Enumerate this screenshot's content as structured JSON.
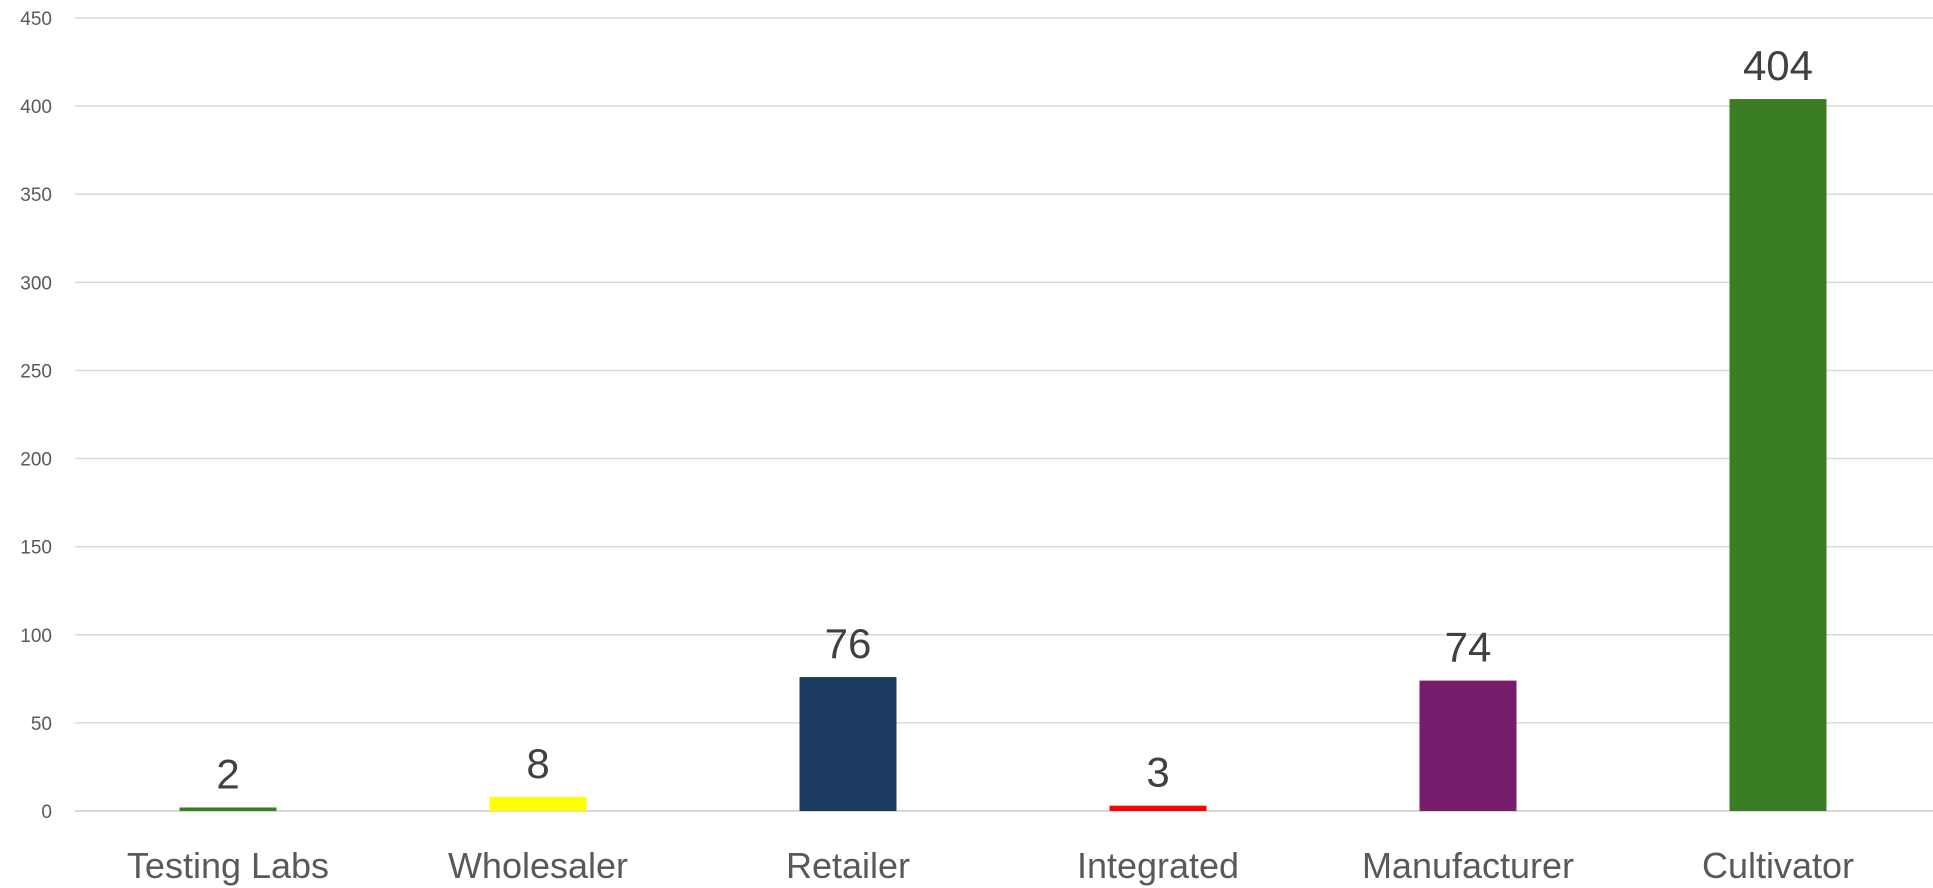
{
  "chart_data": {
    "type": "bar",
    "categories": [
      "Testing Labs",
      "Wholesaler",
      "Retailer",
      "Integrated",
      "Manufacturer",
      "Cultivator"
    ],
    "values": [
      2,
      8,
      76,
      3,
      74,
      404
    ],
    "colors": [
      "#3b7d23",
      "#ffff00",
      "#1a3a5f",
      "#ff0000",
      "#761e6c",
      "#3b7d23"
    ],
    "ylim": [
      0,
      450
    ],
    "yticks": [
      0,
      50,
      100,
      150,
      200,
      250,
      300,
      350,
      400,
      450
    ],
    "grid": true,
    "title": "",
    "xlabel": "",
    "ylabel": ""
  }
}
